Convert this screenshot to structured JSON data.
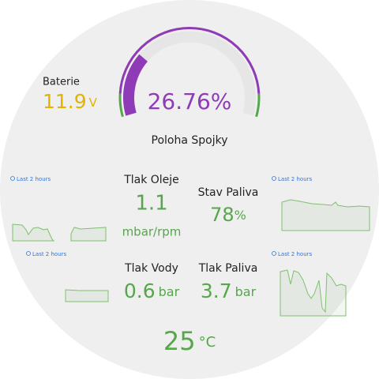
{
  "gauge": {
    "value": 26.76,
    "label": "26.76%",
    "title": "Poloha Spojky"
  },
  "battery": {
    "title": "Baterie",
    "value": 11.9,
    "unit": "V"
  },
  "oil_pressure": {
    "title": "Tlak Oleje",
    "value": 1.1,
    "unit": "mbar/rpm"
  },
  "fuel_level": {
    "title": "Stav Paliva",
    "value": 78,
    "unit": "%"
  },
  "water_pressure": {
    "title": "Tlak Vody",
    "value": 0.6,
    "unit": "bar"
  },
  "fuel_pressure": {
    "title": "Tlak Paliva",
    "value": 3.7,
    "unit": "bar"
  },
  "temperature": {
    "value": 25,
    "unit": "°C"
  },
  "sparklines": [
    {
      "range": "Last 2 hours"
    },
    {
      "range": "Last 2 hours"
    },
    {
      "range": "Last 2 hours"
    },
    {
      "range": "Last 2 hours"
    }
  ]
}
